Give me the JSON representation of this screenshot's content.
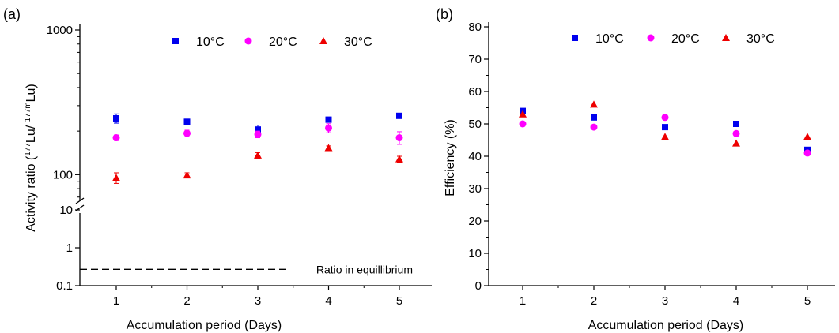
{
  "chart_data": [
    {
      "panel_label": "(a)",
      "type": "scatter",
      "xlabel": "Accumulation period (Days)",
      "ylabel": {
        "pre": "Activity ratio (",
        "sup1": "177",
        "mid": "Lu/ ",
        "sup2": "177m",
        "post": "Lu)"
      },
      "y_scale": "log with axis break",
      "x": [
        1,
        2,
        3,
        4,
        5
      ],
      "x_ticks": [
        "1",
        "2",
        "3",
        "4",
        "5"
      ],
      "y_ticks_upper": [
        "100",
        "1000"
      ],
      "y_ticks_lower": [
        "0.1",
        "1",
        "10"
      ],
      "ylim_upper": [
        60,
        1000
      ],
      "ylim_lower": [
        0.1,
        10
      ],
      "series": [
        {
          "name": "10°C",
          "marker": "square",
          "color": "#0000ee",
          "values": [
            245,
            232,
            205,
            240,
            255
          ],
          "errors": [
            18,
            10,
            15,
            10,
            8
          ]
        },
        {
          "name": "20°C",
          "marker": "circle",
          "color": "#ff00ff",
          "values": [
            180,
            193,
            190,
            210,
            180
          ],
          "errors": [
            8,
            10,
            10,
            15,
            18
          ]
        },
        {
          "name": "30°C",
          "marker": "triangle",
          "color": "#ee0000",
          "values": [
            95,
            99,
            136,
            153,
            128
          ],
          "errors": [
            8,
            4,
            6,
            5,
            6
          ]
        }
      ],
      "reference_line": {
        "label": "Ratio in equillibrium",
        "value": 0.27
      },
      "legend": "top"
    },
    {
      "panel_label": "(b)",
      "type": "scatter",
      "xlabel": "Accumulation period (Days)",
      "ylabel": "Efficiency (%)",
      "x": [
        1,
        2,
        3,
        4,
        5
      ],
      "x_ticks": [
        "1",
        "2",
        "3",
        "4",
        "5"
      ],
      "y_ticks": [
        "0",
        "10",
        "20",
        "30",
        "40",
        "50",
        "60",
        "70",
        "80"
      ],
      "ylim": [
        0,
        80
      ],
      "series": [
        {
          "name": "10°C",
          "marker": "square",
          "color": "#0000ee",
          "values": [
            54,
            52,
            49,
            50,
            42
          ]
        },
        {
          "name": "20°C",
          "marker": "circle",
          "color": "#ff00ff",
          "values": [
            50,
            49,
            52,
            47,
            41
          ]
        },
        {
          "name": "30°C",
          "marker": "triangle",
          "color": "#ee0000",
          "values": [
            53,
            56,
            46,
            44,
            46
          ]
        }
      ],
      "legend": "top"
    }
  ]
}
